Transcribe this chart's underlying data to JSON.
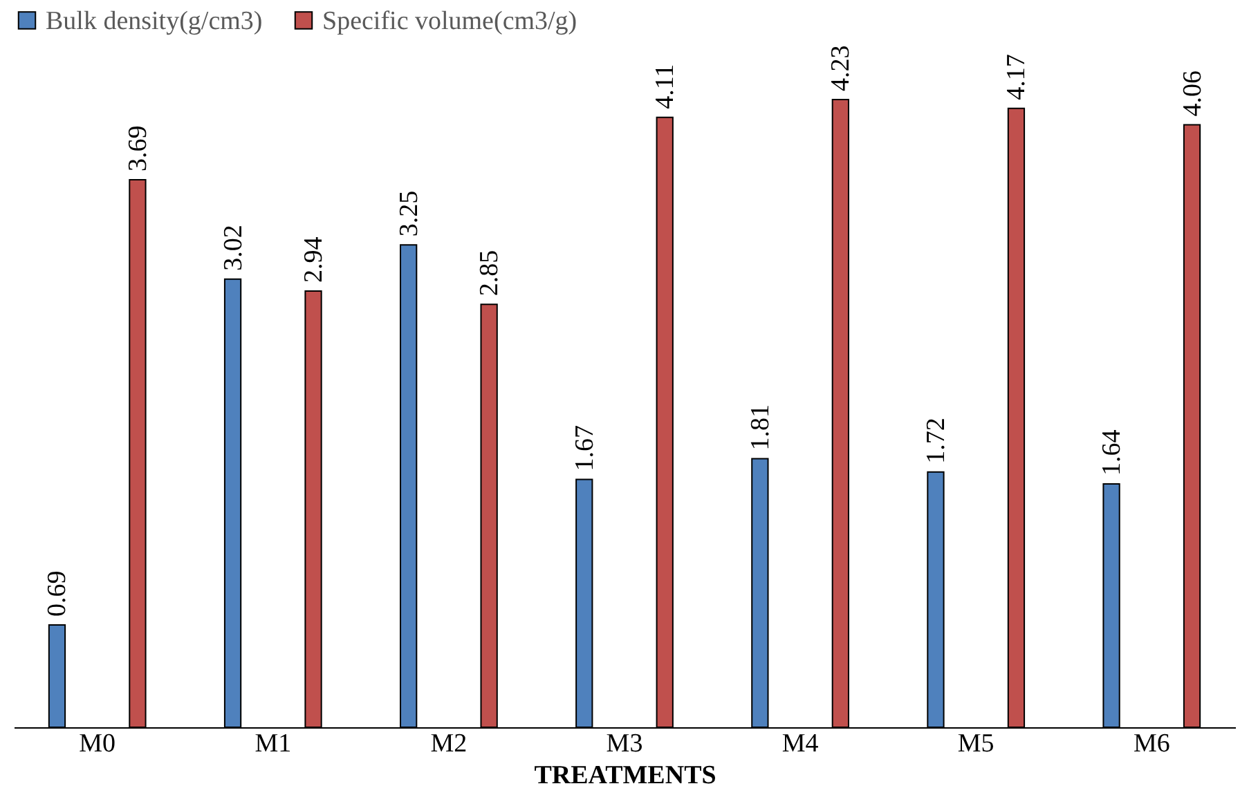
{
  "chart_data": {
    "type": "bar",
    "xlabel": "TREATMENTS",
    "categories": [
      "M0",
      "M1",
      "M2",
      "M3",
      "M4",
      "M5",
      "M6"
    ],
    "series": [
      {
        "name": "Bulk density(g/cm3)",
        "color": "#4f81bd",
        "values": [
          0.69,
          3.02,
          3.25,
          1.67,
          1.81,
          1.72,
          1.64
        ]
      },
      {
        "name": "Specific volume(cm3/g)",
        "color": "#c0504d",
        "values": [
          3.69,
          2.94,
          2.85,
          4.11,
          4.23,
          4.17,
          4.06
        ]
      }
    ],
    "data_labels": true,
    "legend": "top",
    "grid": false
  }
}
